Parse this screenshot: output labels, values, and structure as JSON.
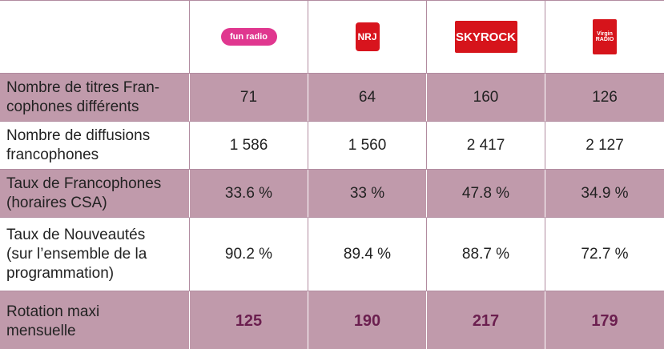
{
  "table": {
    "header": [
      "fun radio",
      "NRJ",
      "SKYROCK",
      "Virgin RADIO"
    ],
    "rows": [
      {
        "label": [
          "Nombre de titres Fran-",
          "cophones différents"
        ],
        "cells": [
          "71",
          "64",
          "160",
          "126"
        ]
      },
      {
        "label": [
          "Nombre de diffusions",
          "francophones"
        ],
        "cells": [
          "1 586",
          "1 560",
          "2 417",
          "2 127"
        ]
      },
      {
        "label": [
          "Taux de Francophones",
          "(horaires CSA)"
        ],
        "cells": [
          "33.6 %",
          "33 %",
          "47.8 %",
          "34.9 %"
        ]
      },
      {
        "label": [
          "Taux de Nouveautés",
          "(sur l’ensemble de la",
          "programmation)"
        ],
        "cells": [
          "90.2 %",
          "89.4 %",
          "88.7 %",
          "72.7 %"
        ]
      },
      {
        "label": [
          "Rotation maxi",
          "mensuelle"
        ],
        "cells": [
          "125",
          "190",
          "217",
          "179"
        ]
      }
    ]
  }
}
